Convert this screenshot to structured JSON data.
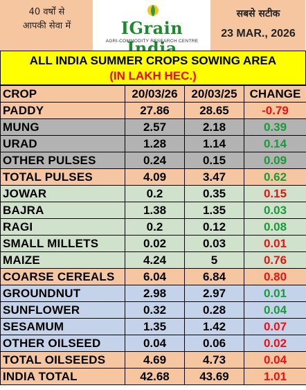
{
  "header": {
    "left_hindi_line1": "40 वर्षों से",
    "left_hindi_line2": "आपकी सेवा में",
    "logo_title": "IGrain India",
    "logo_subtitle": "AGRI-COMMODITY RESEARCH CENTRE",
    "right_hindi": "सबसे सटीक",
    "date": "23 MAR., 2026"
  },
  "title": {
    "line1": "ALL INDIA SUMMER CROPS SOWING AREA",
    "line2": "(IN LAKH HEC.)"
  },
  "table": {
    "columns": [
      "CROP",
      "20/03/26",
      "20/03/25",
      "CHANGE"
    ],
    "rows": [
      {
        "crop": "PADDY",
        "y2026": "27.86",
        "y2025": "28.65",
        "change": "-0.79",
        "trend": "neg",
        "style": "orange"
      },
      {
        "crop": "MUNG",
        "y2026": "2.57",
        "y2025": "2.18",
        "change": "0.39",
        "trend": "pos",
        "style": "gray"
      },
      {
        "crop": "URAD",
        "y2026": "1.28",
        "y2025": "1.14",
        "change": "0.14",
        "trend": "pos",
        "style": "gray"
      },
      {
        "crop": "OTHER PULSES",
        "y2026": "0.24",
        "y2025": "0.15",
        "change": "0.09",
        "trend": "pos",
        "style": "gray"
      },
      {
        "crop": "TOTAL PULSES",
        "y2026": "4.09",
        "y2025": "3.47",
        "change": "0.62",
        "trend": "pos",
        "style": "orange"
      },
      {
        "crop": "JOWAR",
        "y2026": "0.2",
        "y2025": "0.35",
        "change": "0.15",
        "trend": "neg",
        "style": "grn"
      },
      {
        "crop": "BAJRA",
        "y2026": "1.38",
        "y2025": "1.35",
        "change": "0.03",
        "trend": "pos",
        "style": "grn"
      },
      {
        "crop": "RAGI",
        "y2026": "0.2",
        "y2025": "0.12",
        "change": "0.08",
        "trend": "pos",
        "style": "grn"
      },
      {
        "crop": "SMALL MILLETS",
        "y2026": "0.02",
        "y2025": "0.03",
        "change": "0.01",
        "trend": "neg",
        "style": "grn"
      },
      {
        "crop": "MAIZE",
        "y2026": "4.24",
        "y2025": "5",
        "change": "0.76",
        "trend": "neg",
        "style": "grn"
      },
      {
        "crop": "COARSE CEREALS",
        "y2026": "6.04",
        "y2025": "6.84",
        "change": "0.80",
        "trend": "neg",
        "style": "orange"
      },
      {
        "crop": "GROUNDNUT",
        "y2026": "2.98",
        "y2025": "2.97",
        "change": "0.01",
        "trend": "pos",
        "style": "lblue"
      },
      {
        "crop": "SUNFLOWER",
        "y2026": "0.32",
        "y2025": "0.28",
        "change": "0.04",
        "trend": "pos",
        "style": "lblue"
      },
      {
        "crop": "SESAMUM",
        "y2026": "1.35",
        "y2025": "1.42",
        "change": "0.07",
        "trend": "neg",
        "style": "lblue"
      },
      {
        "crop": "OTHER OILSEED",
        "y2026": "0.04",
        "y2025": "0.06",
        "change": "0.02",
        "trend": "neg",
        "style": "lblue"
      },
      {
        "crop": "TOTAL OILSEEDS",
        "y2026": "4.69",
        "y2025": "4.73",
        "change": "0.04",
        "trend": "neg",
        "style": "orange"
      },
      {
        "crop": "INDIA TOTAL",
        "y2026": "42.68",
        "y2025": "43.69",
        "change": "1.01",
        "trend": "neg",
        "style": "orange"
      }
    ]
  },
  "colors": {
    "header_peach": "#f5c6a0",
    "title_yellow": "#ffff00",
    "title_red": "#ff0000",
    "logo_green": "#1e8a2e",
    "positive_green": "#1a9a3a",
    "negative_red": "#ee1111",
    "pulses_gray": "#b3b3b3",
    "cereals_green": "#d0e2cb",
    "oilseed_blue": "#c5d3ea"
  }
}
